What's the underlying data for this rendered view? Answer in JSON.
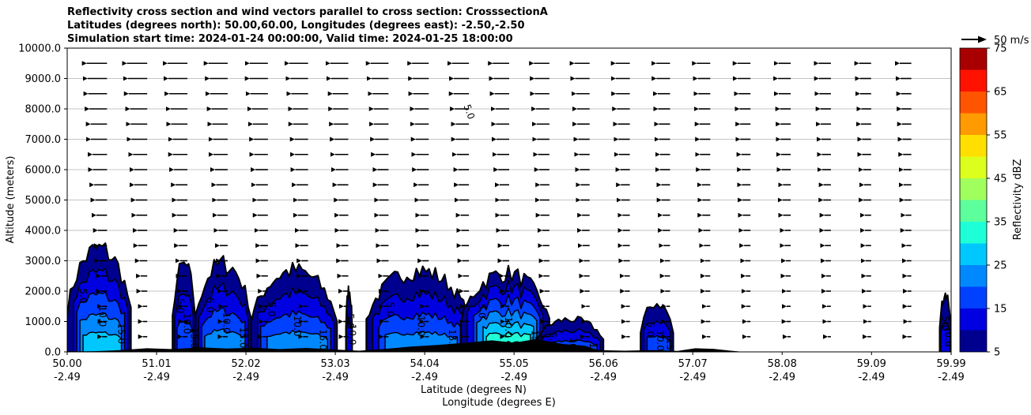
{
  "chart_data": {
    "type": "cross-section",
    "title_lines": [
      "Reflectivity cross section and wind vectors parallel to cross section: CrosssectionA",
      "Latitudes (degrees north): 50.00,60.00, Longitudes (degrees east): -2.50,-2.50",
      "Simulation start time: 2024-01-24 00:00:00, Valid time: 2024-01-25 18:00:00"
    ],
    "ylabel": "Altitude (meters)",
    "xlabel": "Latitude (degrees N)",
    "xlabel2": "Longitude (degrees E)",
    "xlim": [
      50.0,
      59.99
    ],
    "ylim": [
      0,
      10000
    ],
    "yticks": [
      "0.0",
      "1000.0",
      "2000.0",
      "3000.0",
      "4000.0",
      "5000.0",
      "6000.0",
      "7000.0",
      "8000.0",
      "9000.0",
      "10000.0"
    ],
    "xticks": [
      {
        "lat": "50.00",
        "lon": "-2.49"
      },
      {
        "lat": "51.01",
        "lon": "-2.49"
      },
      {
        "lat": "52.02",
        "lon": "-2.49"
      },
      {
        "lat": "53.03",
        "lon": "-2.49"
      },
      {
        "lat": "54.04",
        "lon": "-2.49"
      },
      {
        "lat": "55.05",
        "lon": "-2.49"
      },
      {
        "lat": "56.06",
        "lon": "-2.49"
      },
      {
        "lat": "57.07",
        "lon": "-2.49"
      },
      {
        "lat": "58.08",
        "lon": "-2.49"
      },
      {
        "lat": "59.09",
        "lon": "-2.49"
      },
      {
        "lat": "59.99",
        "lon": "-2.49"
      }
    ],
    "grid": "horizontal",
    "quiver_key": "50 m/s",
    "colorbar": {
      "label": "Reflectivity dBZ",
      "levels": [
        5,
        10,
        15,
        20,
        25,
        30,
        35,
        40,
        45,
        50,
        55,
        60,
        65,
        70,
        75
      ],
      "tick_labels": [
        "5",
        "15",
        "25",
        "35",
        "45",
        "55",
        "65",
        "75"
      ],
      "colors": [
        "#00008f",
        "#0000e0",
        "#0040ff",
        "#0088ff",
        "#00c8ff",
        "#1effd8",
        "#5cff9c",
        "#a0ff5c",
        "#dcff1e",
        "#ffdf00",
        "#ff9a00",
        "#ff5400",
        "#ff1200",
        "#a80000"
      ]
    },
    "cells": [
      {
        "lat": [
          50.0,
          50.72
        ],
        "top": 3800,
        "peak": 27
      },
      {
        "lat": [
          51.19,
          51.45
        ],
        "top": 3200,
        "peak": 15
      },
      {
        "lat": [
          51.45,
          52.08
        ],
        "top": 3250,
        "peak": 22
      },
      {
        "lat": [
          52.08,
          53.05
        ],
        "top": 3000,
        "peak": 22
      },
      {
        "lat": [
          53.15,
          53.22
        ],
        "top": 2300,
        "peak": 10
      },
      {
        "lat": [
          53.38,
          54.55
        ],
        "top": 3000,
        "peak": 22
      },
      {
        "lat": [
          54.45,
          55.45
        ],
        "top": 2900,
        "peak": 35
      },
      {
        "lat": [
          55.3,
          56.06
        ],
        "top": 1200,
        "peak": 15
      },
      {
        "lat": [
          56.48,
          56.85
        ],
        "top": 1800,
        "peak": 15
      },
      {
        "lat": [
          59.86,
          59.99
        ],
        "top": 2150,
        "peak": 12
      }
    ],
    "contour_labels": [
      "5.0",
      "10.0",
      "15.0",
      "20.0",
      "25.0",
      "30.0"
    ],
    "wind": {
      "direction": "toward decreasing latitude",
      "max_speed_ms": 30
    }
  }
}
